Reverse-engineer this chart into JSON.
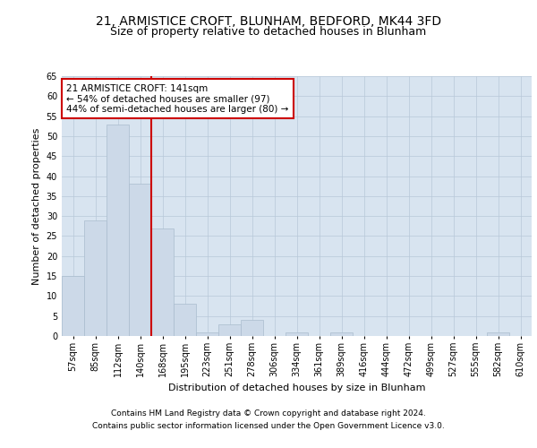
{
  "title_line1": "21, ARMISTICE CROFT, BLUNHAM, BEDFORD, MK44 3FD",
  "title_line2": "Size of property relative to detached houses in Blunham",
  "xlabel": "Distribution of detached houses by size in Blunham",
  "ylabel": "Number of detached properties",
  "categories": [
    "57sqm",
    "85sqm",
    "112sqm",
    "140sqm",
    "168sqm",
    "195sqm",
    "223sqm",
    "251sqm",
    "278sqm",
    "306sqm",
    "334sqm",
    "361sqm",
    "389sqm",
    "416sqm",
    "444sqm",
    "472sqm",
    "499sqm",
    "527sqm",
    "555sqm",
    "582sqm",
    "610sqm"
  ],
  "values": [
    15,
    29,
    53,
    38,
    27,
    8,
    1,
    3,
    4,
    0,
    1,
    0,
    1,
    0,
    0,
    0,
    0,
    0,
    0,
    1,
    0
  ],
  "bar_color": "#ccd9e8",
  "bar_edge_color": "#aabcce",
  "grid_color": "#b8c8d8",
  "background_color": "#d8e4f0",
  "vline_color": "#cc0000",
  "annotation_text": "21 ARMISTICE CROFT: 141sqm\n← 54% of detached houses are smaller (97)\n44% of semi-detached houses are larger (80) →",
  "annotation_box_color": "#ffffff",
  "annotation_box_edge": "#cc0000",
  "ylim": [
    0,
    65
  ],
  "yticks": [
    0,
    5,
    10,
    15,
    20,
    25,
    30,
    35,
    40,
    45,
    50,
    55,
    60,
    65
  ],
  "footer_line1": "Contains HM Land Registry data © Crown copyright and database right 2024.",
  "footer_line2": "Contains public sector information licensed under the Open Government Licence v3.0.",
  "title_fontsize": 10,
  "subtitle_fontsize": 9,
  "axis_label_fontsize": 8,
  "tick_fontsize": 7,
  "annotation_fontsize": 7.5,
  "footer_fontsize": 6.5
}
